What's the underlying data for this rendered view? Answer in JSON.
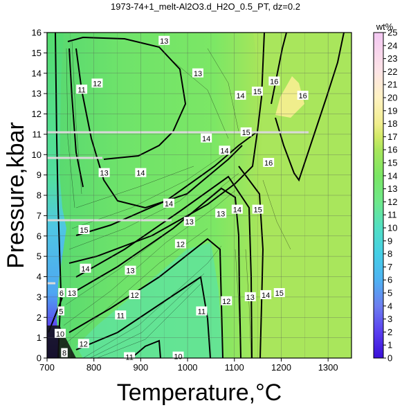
{
  "chart_data": {
    "type": "heatmap",
    "title": "1973-74+1_melt-Al2O3.d_H2O_0.5_PT, dz=0.2",
    "xlabel": "Temperature,°C",
    "ylabel": "Pressure,kbar",
    "xlim": [
      700,
      1350
    ],
    "ylim": [
      0,
      16
    ],
    "x_ticks": [
      700,
      800,
      900,
      1000,
      1100,
      1200,
      1300
    ],
    "y_ticks": [
      0,
      1,
      2,
      3,
      4,
      5,
      6,
      7,
      8,
      9,
      10,
      11,
      12,
      13,
      14,
      15,
      16
    ],
    "grid": true,
    "colorbar": {
      "title": "wt%",
      "range": [
        0,
        25
      ],
      "ticks": [
        0,
        1,
        2,
        3,
        4,
        5,
        6,
        7,
        8,
        9,
        10,
        11,
        12,
        13,
        14,
        15,
        16,
        17,
        18,
        19,
        20,
        21,
        22,
        23,
        24,
        25
      ],
      "colors": [
        {
          "value": 0,
          "color": "#3a0fd8"
        },
        {
          "value": 2,
          "color": "#5a3ff0"
        },
        {
          "value": 4,
          "color": "#6d7ef0"
        },
        {
          "value": 6,
          "color": "#4fb2f2"
        },
        {
          "value": 8,
          "color": "#45cfe6"
        },
        {
          "value": 10,
          "color": "#52dfc4"
        },
        {
          "value": 12,
          "color": "#6ee88a"
        },
        {
          "value": 14,
          "color": "#7ae664"
        },
        {
          "value": 16,
          "color": "#a9e65c"
        },
        {
          "value": 17,
          "color": "#d2ea66"
        },
        {
          "value": 18,
          "color": "#f1ee8e"
        },
        {
          "value": 20,
          "color": "#fff2c2"
        },
        {
          "value": 22,
          "color": "#fde4e6"
        },
        {
          "value": 25,
          "color": "#f3c7f2"
        }
      ]
    },
    "contour_labels": [
      {
        "text": "13",
        "x": 950,
        "y": 15.6
      },
      {
        "text": "13",
        "x": 1022,
        "y": 14.0
      },
      {
        "text": "12",
        "x": 807,
        "y": 13.5
      },
      {
        "text": "11",
        "x": 774,
        "y": 13.2
      },
      {
        "text": "16",
        "x": 1185,
        "y": 13.6
      },
      {
        "text": "15",
        "x": 1149,
        "y": 13.1
      },
      {
        "text": "14",
        "x": 1113,
        "y": 12.9
      },
      {
        "text": "16",
        "x": 1246,
        "y": 12.9
      },
      {
        "text": "14",
        "x": 1040,
        "y": 10.8
      },
      {
        "text": "15",
        "x": 1125,
        "y": 11.1
      },
      {
        "text": "14",
        "x": 1079,
        "y": 10.2
      },
      {
        "text": "16",
        "x": 1173,
        "y": 9.6
      },
      {
        "text": "13",
        "x": 822,
        "y": 9.1
      },
      {
        "text": "14",
        "x": 900,
        "y": 9.1
      },
      {
        "text": "14",
        "x": 960,
        "y": 7.6
      },
      {
        "text": "14",
        "x": 1106,
        "y": 7.3
      },
      {
        "text": "15",
        "x": 1150,
        "y": 7.3
      },
      {
        "text": "13",
        "x": 1071,
        "y": 7.1
      },
      {
        "text": "13",
        "x": 1004,
        "y": 6.7
      },
      {
        "text": "15",
        "x": 779,
        "y": 6.3
      },
      {
        "text": "12",
        "x": 985,
        "y": 5.6
      },
      {
        "text": "14",
        "x": 782,
        "y": 4.4
      },
      {
        "text": "13",
        "x": 878,
        "y": 4.3
      },
      {
        "text": "12",
        "x": 887,
        "y": 3.1
      },
      {
        "text": "11",
        "x": 857,
        "y": 2.1
      },
      {
        "text": "11",
        "x": 1030,
        "y": 2.3
      },
      {
        "text": "12",
        "x": 1083,
        "y": 2.8
      },
      {
        "text": "13",
        "x": 1134,
        "y": 3.0
      },
      {
        "text": "14",
        "x": 1167,
        "y": 3.1
      },
      {
        "text": "15",
        "x": 1196,
        "y": 3.2
      },
      {
        "text": "13",
        "x": 753,
        "y": 3.2
      },
      {
        "text": "6",
        "x": 731,
        "y": 3.2
      },
      {
        "text": "5",
        "x": 730,
        "y": 2.3
      },
      {
        "text": "12",
        "x": 778,
        "y": 0.7
      },
      {
        "text": "10",
        "x": 728,
        "y": 1.2
      },
      {
        "text": "8",
        "x": 737,
        "y": 0.25
      },
      {
        "text": "11",
        "x": 876,
        "y": 0.05
      },
      {
        "text": "10",
        "x": 980,
        "y": 0.08
      }
    ]
  }
}
